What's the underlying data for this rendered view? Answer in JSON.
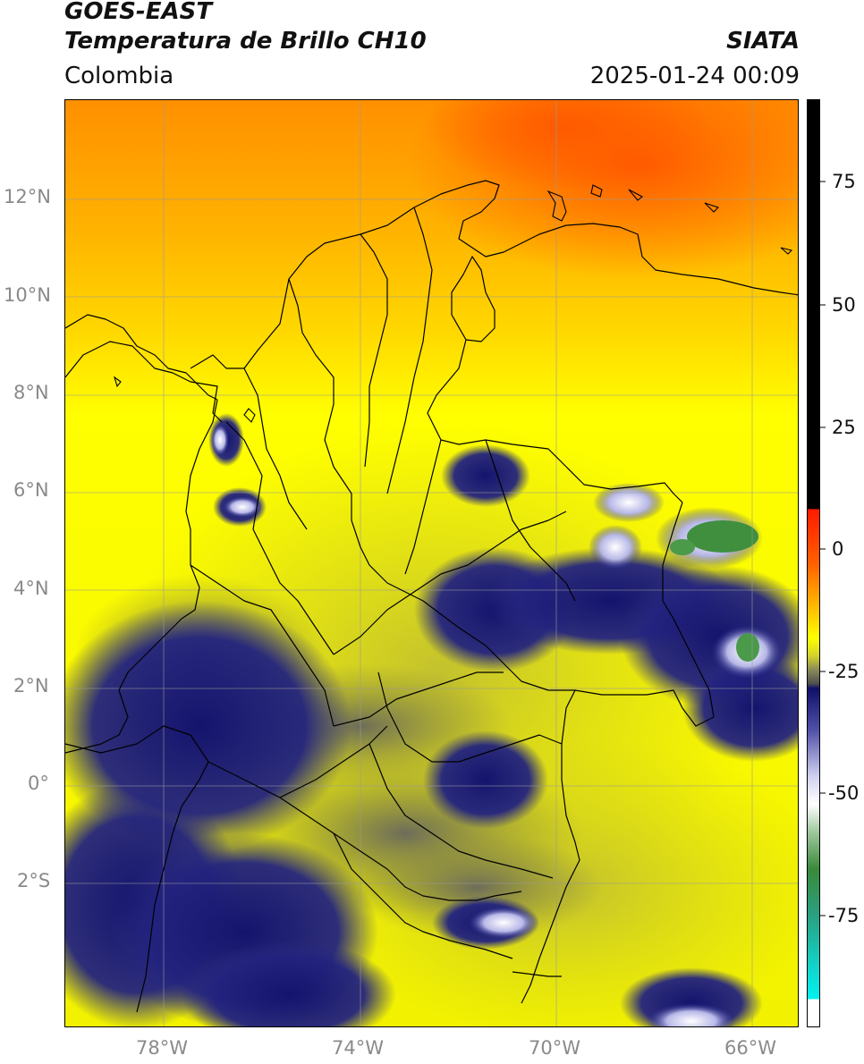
{
  "header": {
    "satellite": "GOES-EAST",
    "product": "Temperatura de Brillo CH10",
    "region": "Colombia",
    "organization": "SIATA",
    "datetime": "2025-01-24 00:09"
  },
  "map": {
    "lat_ticks": [
      "12°N",
      "10°N",
      "8°N",
      "6°N",
      "4°N",
      "2°N",
      "0°",
      "2°S"
    ],
    "lon_ticks": [
      "78°W",
      "74°W",
      "70°W",
      "66°W"
    ],
    "colors": {
      "warm_orange": "#ff7a00",
      "orange": "#ffa500",
      "yellow": "#ffff00",
      "olive": "#c8c82a",
      "gray": "#707070",
      "navy": "#1a1a80",
      "white": "#ffffff",
      "green": "#3a8a3a",
      "teal": "#20c0a0",
      "cyan": "#00e8e8",
      "red": "#ff2200",
      "black": "#000000"
    }
  },
  "colorbar": {
    "ticks": [
      "75",
      "50",
      "25",
      "0",
      "-25",
      "-50",
      "-75"
    ]
  }
}
